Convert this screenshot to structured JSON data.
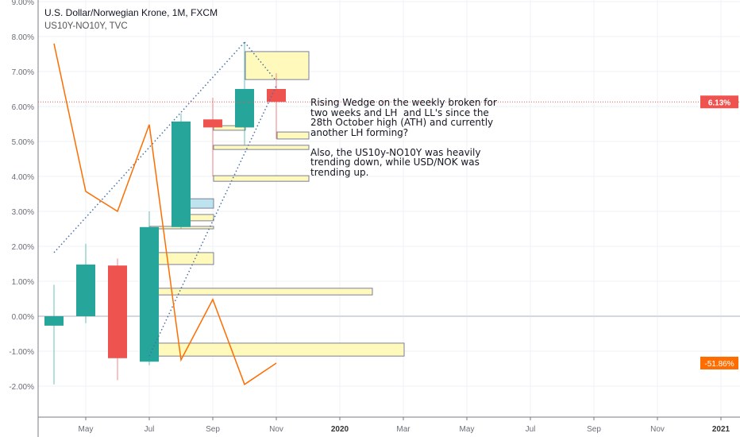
{
  "legend": {
    "title": "U.S. Dollar/Norwegian Krone, 1M, FXCM",
    "subtitle": "US10Y-NO10Y, TVC"
  },
  "annotation": {
    "paragraph1": "Rising Wedge on the weekly broken for\ntwo weeks and LH  and LL's since the\n28th October high (ATH) and currently\nanother LH forming?",
    "paragraph2": "Also, the US10y-NO10Y was heavily\ntrending down, while USD/NOK was\ntrending up."
  },
  "chart_data": {
    "type": "candlestick",
    "ylim": [
      -3.0,
      9.0
    ],
    "y_ticks": [
      "9.00%",
      "8.00%",
      "7.00%",
      "6.00%",
      "5.00%",
      "4.00%",
      "3.00%",
      "2.00%",
      "1.00%",
      "0.00%",
      "-1.00%",
      "-2.00%"
    ],
    "y_tick_values": [
      9,
      8,
      7,
      6,
      5,
      4,
      3,
      2,
      1,
      0,
      -1,
      -2
    ],
    "x_ticks": [
      "May",
      "Jul",
      "Sep",
      "Nov",
      "2020",
      "Mar",
      "May",
      "Jul",
      "Sep",
      "Nov",
      "2021"
    ],
    "x_tick_months": [
      "2019-05",
      "2019-07",
      "2019-09",
      "2019-11",
      "2020-01",
      "2020-03",
      "2020-05",
      "2020-07",
      "2020-09",
      "2020-11",
      "2021-01"
    ],
    "grid": true,
    "colors": {
      "up": "#26a69a",
      "down": "#ef5350",
      "compare": "#ff6d00",
      "rect": "#fff9b0",
      "rect_blue": "#b2dfeb",
      "rect_border": "#7a7f99",
      "wedge": "#4a6fa5",
      "price_line": "#ef5350"
    },
    "candles": [
      {
        "month": "2019-04",
        "open": -0.27,
        "high": 0.9,
        "low": -1.95,
        "close": 0.0
      },
      {
        "month": "2019-05",
        "open": 0.0,
        "high": 2.07,
        "low": -0.2,
        "close": 1.48
      },
      {
        "month": "2019-06",
        "open": 1.45,
        "high": 1.65,
        "low": -1.83,
        "close": -1.2
      },
      {
        "month": "2019-07",
        "open": -1.3,
        "high": 3.0,
        "low": -1.4,
        "close": 2.55
      },
      {
        "month": "2019-08",
        "open": 2.55,
        "high": 5.8,
        "low": 2.5,
        "close": 5.57
      },
      {
        "month": "2019-09",
        "open": 5.63,
        "high": 6.25,
        "low": 4.0,
        "close": 5.4
      },
      {
        "month": "2019-10",
        "open": 5.4,
        "high": 7.82,
        "low": 4.9,
        "close": 6.5
      },
      {
        "month": "2019-11",
        "open": 6.5,
        "high": 6.95,
        "low": 5.07,
        "close": 6.13
      }
    ],
    "compare_series": {
      "name": "US10Y-NO10Y",
      "months": [
        "2019-04",
        "2019-05",
        "2019-06",
        "2019-07",
        "2019-08",
        "2019-09",
        "2019-10",
        "2019-11"
      ],
      "values": [
        7.8,
        3.57,
        3.0,
        5.48,
        -1.25,
        0.48,
        -1.95,
        -1.34
      ],
      "last_label": "-51.86%"
    },
    "last_price_label": "6.13%",
    "last_price": 6.13,
    "wedge_lines": [
      {
        "from": {
          "month": "2019-04",
          "value": 1.82
        },
        "to": {
          "month": "2019-10",
          "value": 7.84
        }
      },
      {
        "from": {
          "month": "2019-10",
          "value": 7.84
        },
        "to": {
          "month": "2019-11",
          "value": 6.73
        }
      },
      {
        "from": {
          "month": "2019-07",
          "value": -1.14
        },
        "to": {
          "month": "2019-11",
          "value": 6.59
        }
      }
    ],
    "rectangles": [
      {
        "from": "2019-10",
        "to": "2019-12",
        "top": 7.57,
        "bottom": 6.77,
        "style": "yellow"
      },
      {
        "from": "2019-09",
        "to": "2019-10",
        "top": 5.45,
        "bottom": 5.32,
        "style": "yellow"
      },
      {
        "from": "2019-11",
        "to": "2019-12",
        "top": 5.27,
        "bottom": 5.07,
        "style": "yellow"
      },
      {
        "from": "2019-09",
        "to": "2019-12",
        "top": 4.89,
        "bottom": 4.77,
        "style": "yellow"
      },
      {
        "from": "2019-09",
        "to": "2019-12",
        "top": 4.02,
        "bottom": 3.86,
        "style": "yellow"
      },
      {
        "from": "2019-08",
        "to": "2019-09",
        "top": 3.36,
        "bottom": 3.09,
        "style": "blue"
      },
      {
        "from": "2019-08",
        "to": "2019-09",
        "top": 2.91,
        "bottom": 2.73,
        "style": "yellow"
      },
      {
        "from": "2019-07",
        "to": "2019-09",
        "top": 2.57,
        "bottom": 2.5,
        "style": "yellow"
      },
      {
        "from": "2019-07",
        "to": "2019-09",
        "top": 1.82,
        "bottom": 1.48,
        "style": "yellow"
      },
      {
        "from": "2019-07",
        "to": "2020-02",
        "top": 0.8,
        "bottom": 0.61,
        "style": "yellow"
      },
      {
        "from": "2019-07",
        "to": "2020-03",
        "top": -0.77,
        "bottom": -1.14,
        "style": "yellow"
      }
    ]
  }
}
